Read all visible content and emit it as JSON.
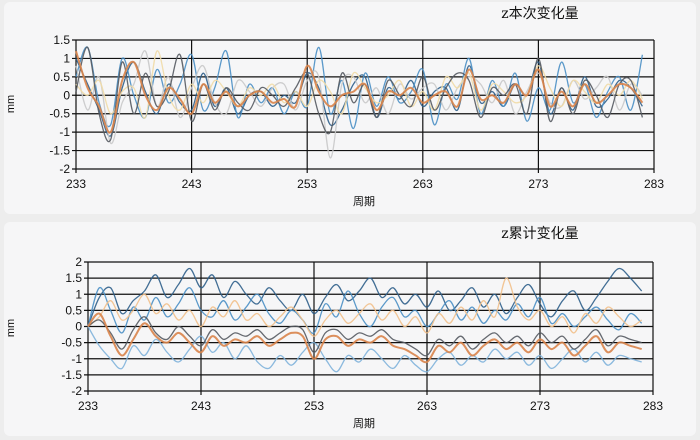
{
  "chart_data": [
    {
      "type": "line",
      "title": "z本次变化量",
      "xlabel": "周期",
      "ylabel": "mm",
      "xlim": [
        233,
        283
      ],
      "ylim": [
        -2,
        1.5
      ],
      "xticks": [
        "233",
        "243",
        "253",
        "263",
        "273",
        "283"
      ],
      "yticks": [
        "1.5",
        "1",
        "0.5",
        "0",
        "-0.5",
        "-1",
        "-1.5",
        "-2"
      ],
      "grid": true,
      "x_start": 233,
      "series": [
        {
          "color": "#2f5f8a",
          "values": [
            1.0,
            0.3,
            -0.4,
            -1.1,
            0.2,
            0.9,
            0.1,
            -0.5,
            0.3,
            -0.2,
            -0.4,
            0.6,
            -0.3,
            0.2,
            -0.5,
            0.0,
            0.1,
            -0.3,
            0.0,
            -0.2,
            0.6,
            0.2,
            -0.8,
            -0.4,
            0.3,
            0.5,
            -0.6,
            0.2,
            -0.1,
            0.4,
            -0.3,
            0.1,
            0.2,
            -0.4,
            0.8,
            -0.2,
            0.1,
            -0.3,
            0.3,
            0.0,
            0.9,
            -0.5,
            0.2,
            -0.4,
            0.5,
            -0.3,
            -0.1,
            0.4,
            0.2,
            -0.3
          ]
        },
        {
          "color": "#4a8fc4",
          "values": [
            0.5,
            1.3,
            -0.2,
            -0.8,
            1.0,
            0.0,
            -0.6,
            0.7,
            -0.2,
            0.3,
            1.1,
            -0.4,
            0.2,
            1.2,
            -0.6,
            0.3,
            -0.2,
            0.2,
            -0.5,
            0.1,
            -0.3,
            1.3,
            -0.5,
            0.4,
            -0.9,
            0.6,
            -0.3,
            0.5,
            -0.2,
            0.1,
            0.7,
            -0.8,
            0.3,
            -0.1,
            1.0,
            -0.5,
            0.4,
            -0.3,
            0.6,
            -0.7,
            0.2,
            -0.4,
            0.9,
            -0.2,
            0.3,
            -0.6,
            0.1,
            0.5,
            -0.4,
            1.1
          ]
        },
        {
          "color": "#c9c9c9",
          "values": [
            0.8,
            -0.4,
            0.5,
            -1.3,
            -0.2,
            0.3,
            1.2,
            -0.3,
            0.5,
            -0.6,
            0.2,
            0.8,
            -0.2,
            -0.5,
            0.4,
            0.1,
            -0.3,
            0.2,
            0.3,
            -0.4,
            0.4,
            0.5,
            -1.7,
            0.3,
            0.5,
            -0.2,
            0.2,
            -0.5,
            0.3,
            -0.1,
            0.2,
            0.3,
            -0.4,
            0.2,
            0.5,
            0.3,
            -0.2,
            0.4,
            -0.5,
            0.1,
            0.6,
            -0.2,
            -0.3,
            0.4,
            -0.1,
            0.2,
            0.5,
            -0.4,
            0.3,
            0.0
          ]
        },
        {
          "color": "#f1dca6",
          "values": [
            0.3,
            0.0,
            0.4,
            -0.5,
            0.1,
            0.2,
            -0.6,
            1.2,
            0.0,
            -0.4,
            0.3,
            -0.2,
            0.4,
            0.1,
            -0.3,
            0.2,
            0.0,
            0.3,
            -0.2,
            0.1,
            -0.3,
            0.4,
            0.1,
            -0.5,
            0.6,
            0.2,
            -0.2,
            0.0,
            0.4,
            -0.3,
            0.1,
            -0.4,
            0.5,
            0.2,
            0.6,
            -0.4,
            0.3,
            0.1,
            -0.2,
            0.0,
            0.8,
            0.2,
            -0.3,
            0.4,
            0.1,
            -0.2,
            0.3,
            0.0,
            0.4,
            -0.1
          ]
        },
        {
          "color": "#555a60",
          "values": [
            0.1,
            1.3,
            -0.5,
            -1.2,
            0.9,
            -0.5,
            0.6,
            -0.3,
            0.1,
            1.1,
            -0.7,
            0.3,
            -0.4,
            0.2,
            -0.2,
            -0.4,
            0.2,
            0.0,
            -0.3,
            0.2,
            0.6,
            -0.5,
            -1.0,
            0.6,
            -0.2,
            0.3,
            -0.6,
            0.4,
            0.0,
            -0.3,
            0.5,
            -0.4,
            0.2,
            0.6,
            0.4,
            -0.6,
            0.2,
            0.0,
            0.3,
            -0.5,
            1.0,
            -0.7,
            0.2,
            -0.5,
            0.4,
            0.0,
            -0.6,
            0.3,
            0.4,
            -0.6
          ]
        },
        {
          "color": "#d9844a",
          "values": [
            1.2,
            0.2,
            -0.3,
            -1.0,
            0.4,
            0.9,
            0.0,
            -0.4,
            0.2,
            -0.1,
            -0.5,
            0.3,
            -0.2,
            0.1,
            -0.3,
            0.0,
            0.1,
            -0.2,
            -0.1,
            -0.3,
            0.8,
            0.1,
            -0.3,
            0.0,
            0.1,
            0.3,
            -0.4,
            0.1,
            0.0,
            0.2,
            -0.2,
            0.0,
            0.1,
            -0.3,
            0.7,
            -0.1,
            0.0,
            -0.2,
            0.3,
            0.0,
            0.7,
            -0.3,
            0.1,
            -0.3,
            0.3,
            -0.2,
            0.0,
            0.3,
            0.2,
            -0.2
          ]
        }
      ]
    },
    {
      "type": "line",
      "title": "z累计变化量",
      "xlabel": "周期",
      "ylabel": "mm",
      "xlim": [
        233,
        283
      ],
      "ylim": [
        -2,
        2
      ],
      "xticks": [
        "233",
        "243",
        "253",
        "263",
        "273",
        "283"
      ],
      "yticks": [
        "2",
        "1.5",
        "1",
        "0.5",
        "0",
        "-0.5",
        "-1",
        "-1.5",
        "-2"
      ],
      "grid": true,
      "x_start": 233,
      "series": [
        {
          "color": "#2f5f8a",
          "values": [
            0.0,
            0.9,
            1.2,
            0.4,
            0.8,
            1.1,
            1.6,
            0.9,
            1.3,
            1.8,
            1.2,
            1.6,
            0.9,
            1.4,
            1.0,
            0.7,
            1.2,
            0.8,
            0.5,
            1.0,
            0.4,
            0.9,
            1.3,
            0.8,
            1.1,
            1.5,
            0.9,
            1.2,
            0.7,
            1.0,
            0.6,
            1.1,
            0.5,
            0.8,
            1.2,
            0.6,
            1.0,
            0.4,
            0.9,
            1.3,
            0.7,
            0.3,
            0.8,
            1.1,
            0.5,
            0.9,
            1.4,
            1.8,
            1.5,
            1.1
          ]
        },
        {
          "color": "#4a8fc4",
          "values": [
            0.0,
            1.2,
            0.5,
            -0.2,
            0.6,
            0.2,
            0.9,
            0.3,
            0.7,
            1.2,
            0.5,
            0.3,
            0.8,
            0.2,
            0.6,
            1.0,
            0.4,
            0.1,
            0.5,
            0.2,
            -0.2,
            0.7,
            0.3,
            1.1,
            0.4,
            0.0,
            0.6,
            0.9,
            0.3,
            0.5,
            0.0,
            0.4,
            0.8,
            0.2,
            0.6,
            0.1,
            0.5,
            0.2,
            0.7,
            0.3,
            0.9,
            0.1,
            0.4,
            0.0,
            0.3,
            0.6,
            0.2,
            -0.1,
            0.4,
            0.1
          ]
        },
        {
          "color": "#7fb3da",
          "values": [
            0.0,
            -0.6,
            -1.0,
            -1.3,
            -0.6,
            -0.9,
            -0.4,
            -0.8,
            -1.1,
            -0.7,
            -0.3,
            -0.8,
            -0.5,
            -1.0,
            -0.6,
            -1.1,
            -1.3,
            -0.9,
            -1.2,
            -0.8,
            -0.5,
            -1.0,
            -1.4,
            -0.9,
            -1.1,
            -0.7,
            -1.0,
            -1.3,
            -0.9,
            -1.2,
            -1.4,
            -1.0,
            -0.8,
            -1.2,
            -0.9,
            -1.1,
            -0.7,
            -1.0,
            -0.8,
            -1.2,
            -0.9,
            -1.3,
            -1.0,
            -0.7,
            -1.1,
            -0.8,
            -1.2,
            -0.9,
            -1.0,
            -1.1
          ]
        },
        {
          "color": "#f2c08a",
          "values": [
            0.0,
            0.3,
            0.8,
            0.2,
            0.5,
            1.0,
            0.4,
            0.7,
            0.2,
            0.5,
            0.0,
            0.6,
            0.3,
            0.8,
            0.2,
            0.4,
            0.0,
            0.3,
            0.6,
            0.2,
            -0.3,
            0.2,
            0.5,
            0.1,
            0.4,
            0.7,
            0.2,
            0.5,
            0.0,
            0.3,
            -0.2,
            0.4,
            0.1,
            0.6,
            0.2,
            0.8,
            0.3,
            1.5,
            0.6,
            0.2,
            0.5,
            0.0,
            0.3,
            -0.2,
            0.4,
            0.1,
            0.6,
            0.3,
            0.0,
            0.2
          ]
        },
        {
          "color": "#555a60",
          "values": [
            0.0,
            0.2,
            -0.2,
            -0.7,
            -0.1,
            0.3,
            -0.2,
            -0.4,
            0.0,
            -0.3,
            -0.6,
            -0.1,
            -0.4,
            -0.2,
            -0.3,
            -0.1,
            -0.4,
            -0.2,
            0.0,
            -0.1,
            -0.8,
            -0.2,
            -0.1,
            -0.4,
            -0.2,
            -0.3,
            -0.1,
            -0.4,
            -0.5,
            -0.7,
            -0.9,
            -0.4,
            -0.6,
            -0.3,
            -0.7,
            -0.4,
            -0.2,
            -0.5,
            -0.3,
            -0.6,
            -0.2,
            -0.5,
            -0.3,
            -0.7,
            -0.4,
            -0.1,
            -0.6,
            -0.3,
            -0.4,
            -0.5
          ]
        },
        {
          "color": "#d9844a",
          "values": [
            0.0,
            0.4,
            -0.3,
            -0.9,
            -0.4,
            0.1,
            -0.3,
            -0.5,
            -0.2,
            -0.5,
            -0.8,
            -0.3,
            -0.6,
            -0.4,
            -0.5,
            -0.3,
            -0.6,
            -0.4,
            -0.2,
            -0.3,
            -1.0,
            -0.4,
            -0.3,
            -0.6,
            -0.4,
            -0.5,
            -0.3,
            -0.6,
            -0.7,
            -0.9,
            -1.1,
            -0.6,
            -0.8,
            -0.5,
            -0.9,
            -0.6,
            -0.4,
            -0.7,
            -0.5,
            -0.8,
            -0.4,
            -0.7,
            -0.5,
            -0.9,
            -0.6,
            -0.3,
            -0.8,
            -0.5,
            -0.6,
            -0.7
          ]
        }
      ]
    }
  ]
}
